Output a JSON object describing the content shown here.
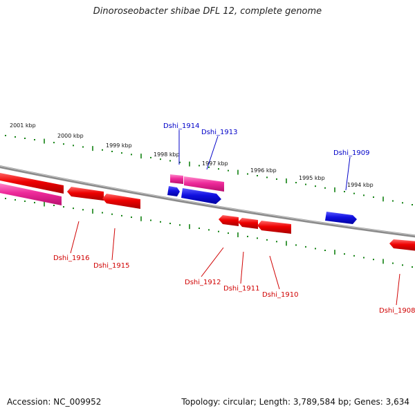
{
  "title": "Dinoroseobacter shibae DFL 12, complete genome",
  "footer": {
    "accession": "Accession: NC_009952",
    "summary": "Topology: circular; Length: 3,789,584 bp; Genes: 3,634"
  },
  "colors": {
    "forward_gene": "#1010e0",
    "reverse_gene": "#e80000",
    "rna_gene": "#ee2a9a",
    "backbone": "#808080",
    "tick": "#108010",
    "forward_label": "#0000c8",
    "reverse_label": "#d00000"
  },
  "kbp_labels": [
    "2001 kbp",
    "2000 kbp",
    "1999 kbp",
    "1998 kbp",
    "1997 kbp",
    "1996 kbp",
    "1995 kbp",
    "1994 kbp"
  ],
  "forward_gene_labels": [
    "Dshi_1914",
    "Dshi_1913",
    "Dshi_1909"
  ],
  "reverse_gene_labels": [
    "Dshi_1916",
    "Dshi_1915",
    "Dshi_1912",
    "Dshi_1911",
    "Dshi_1910",
    "Dshi_1908"
  ]
}
